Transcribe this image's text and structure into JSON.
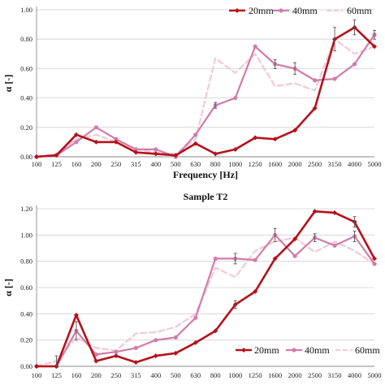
{
  "chart_data": [
    {
      "type": "line",
      "title": "",
      "xlabel": "Frequency [Hz]",
      "ylabel": "α [-]",
      "categories": [
        "100",
        "125",
        "160",
        "200",
        "250",
        "315",
        "400",
        "500",
        "630",
        "800",
        "1000",
        "1250",
        "1600",
        "2000",
        "2500",
        "3150",
        "4000",
        "5000"
      ],
      "ylim": [
        0,
        1.0
      ],
      "yticks": [
        "0.00",
        "0.20",
        "0.40",
        "0.60",
        "0.80",
        "1.00"
      ],
      "ytick_values": [
        0,
        0.2,
        0.4,
        0.6,
        0.8,
        1.0
      ],
      "grid": true,
      "legend_position": "top-right",
      "series": [
        {
          "name": "20mm",
          "color": "#b5121b",
          "style": "solid",
          "width": 2.6,
          "marker": "diamond",
          "values": [
            0.0,
            0.01,
            0.15,
            0.1,
            0.1,
            0.03,
            0.02,
            0.01,
            0.09,
            0.02,
            0.05,
            0.13,
            0.12,
            0.18,
            0.33,
            0.8,
            0.88,
            0.75
          ]
        },
        {
          "name": "40mm",
          "color": "#d17ca9",
          "style": "solid",
          "width": 2.2,
          "marker": "circle",
          "values": [
            0.0,
            0.01,
            0.1,
            0.2,
            0.12,
            0.05,
            0.05,
            0.0,
            0.15,
            0.35,
            0.4,
            0.75,
            0.63,
            0.6,
            0.52,
            0.53,
            0.63,
            0.83
          ]
        },
        {
          "name": "60mm",
          "color": "#f2c8d9",
          "style": "dashed",
          "width": 2.2,
          "marker": "none",
          "values": [
            0.0,
            0.02,
            0.12,
            0.15,
            0.1,
            0.05,
            0.03,
            0.02,
            0.12,
            0.67,
            0.57,
            0.7,
            0.48,
            0.5,
            0.45,
            0.8,
            0.7,
            0.75
          ]
        }
      ]
    },
    {
      "type": "line",
      "title": "Sample T2",
      "xlabel": "",
      "ylabel": "α [-]",
      "categories": [
        "100",
        "125",
        "160",
        "200",
        "250",
        "315",
        "400",
        "500",
        "630",
        "800",
        "1000",
        "1250",
        "1600",
        "2000",
        "2500",
        "3150",
        "4000",
        "5000"
      ],
      "ylim": [
        0,
        1.2
      ],
      "yticks": [
        "0.00",
        "0.20",
        "0.40",
        "0.60",
        "0.80",
        "1.00",
        "1.20"
      ],
      "ytick_values": [
        0,
        0.2,
        0.4,
        0.6,
        0.8,
        1.0,
        1.2
      ],
      "grid": true,
      "legend_position": "bottom-right",
      "series": [
        {
          "name": "20mm",
          "color": "#b5121b",
          "style": "solid",
          "width": 2.6,
          "marker": "diamond",
          "values": [
            0.0,
            0.0,
            0.39,
            0.04,
            0.08,
            0.03,
            0.08,
            0.1,
            0.18,
            0.27,
            0.47,
            0.57,
            0.82,
            0.97,
            1.18,
            1.17,
            1.1,
            0.82
          ]
        },
        {
          "name": "40mm",
          "color": "#d17ca9",
          "style": "solid",
          "width": 2.2,
          "marker": "circle",
          "values": [
            0.0,
            0.0,
            0.27,
            0.09,
            0.11,
            0.14,
            0.2,
            0.22,
            0.37,
            0.82,
            0.82,
            0.81,
            1.0,
            0.84,
            0.98,
            0.92,
            0.99,
            0.78
          ]
        },
        {
          "name": "60mm",
          "color": "#f2c8d9",
          "style": "dashed",
          "width": 2.2,
          "marker": "none",
          "values": [
            0.0,
            0.04,
            0.22,
            0.14,
            0.12,
            0.25,
            0.26,
            0.3,
            0.4,
            0.75,
            0.68,
            0.88,
            0.95,
            0.98,
            0.87,
            0.95,
            0.88,
            0.78
          ]
        }
      ]
    }
  ]
}
